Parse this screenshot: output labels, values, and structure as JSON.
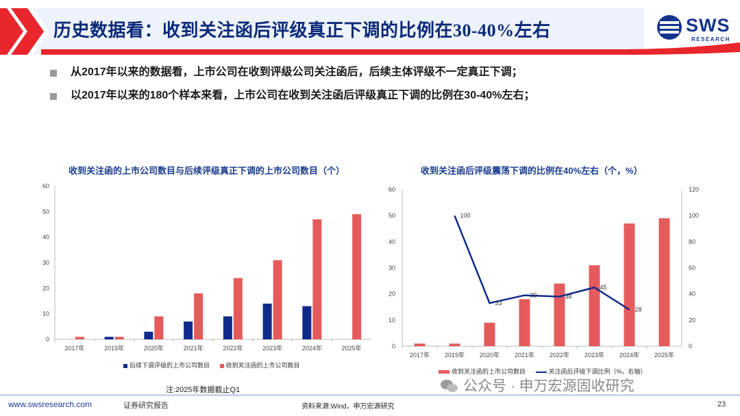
{
  "header": {
    "title": "历史数据看：收到关注函后评级真正下调的比例在30-40%左右",
    "accent_color": "#e8262b",
    "brand_color": "#14348c"
  },
  "logo": {
    "text": "SWS",
    "sub": "RESEARCH"
  },
  "bullets": [
    "从2017年以来的数据看，上市公司在收到评级公司关注函后，后续主体评级不一定真正下调；",
    "以2017年以来的180个样本来看，上市公司在收到关注函后评级真正下调的比例在30-40%左右；"
  ],
  "chart_data": [
    {
      "type": "bar",
      "title": "收到关注函的上市公司数目与后续评级真正下调的上市公司数目（个）",
      "categories": [
        "2017年",
        "2019年",
        "2020年",
        "2021年",
        "2022年",
        "2023年",
        "2024年",
        "2025年"
      ],
      "series": [
        {
          "name": "后续下调评级的上市公司数目",
          "color": "#0f2a8a",
          "values": [
            0,
            1,
            3,
            7,
            9,
            14,
            13,
            0
          ]
        },
        {
          "name": "收到关注函的上市公司数目",
          "color": "#e55b5b",
          "values": [
            1,
            1,
            9,
            18,
            24,
            31,
            47,
            49
          ]
        }
      ],
      "ylim": [
        0,
        60
      ],
      "yticks": [
        "0",
        "10",
        "20",
        "30",
        "40",
        "50",
        "60"
      ],
      "legend": "bottom"
    },
    {
      "type": "bar+line",
      "title": "收到关注函后评级震荡下调的比例在40%左右（个，%）",
      "categories": [
        "2017年",
        "2019年",
        "2020年",
        "2021年",
        "2022年",
        "2023年",
        "2024年",
        "2025年"
      ],
      "bars": {
        "name": "收到关注函的上市公司数目",
        "color": "#e55b5b",
        "values": [
          1,
          1,
          9,
          18,
          24,
          31,
          47,
          49
        ]
      },
      "line": {
        "name": "关注函后评级下调比例（%，右轴）",
        "color": "#0f2a8a",
        "values": [
          null,
          100,
          33,
          39,
          38,
          45,
          28,
          null
        ],
        "labels": [
          "",
          "100",
          "33",
          "39",
          "38",
          "45",
          "28",
          ""
        ]
      },
      "ylim_left": [
        0,
        60
      ],
      "yticks_left": [
        "0",
        "10",
        "20",
        "30",
        "40",
        "50",
        "60"
      ],
      "ylim_right": [
        0,
        120
      ],
      "yticks_right": [
        "0",
        "20",
        "40",
        "60",
        "80",
        "100",
        "120"
      ],
      "legend": "bottom"
    }
  ],
  "note": "注:2025年数据截止Q1",
  "footer": {
    "url": "www.swsresearch.com",
    "doc_type": "证券研究报告",
    "source": "资料来源:Wind，申万宏源研究",
    "page": "23"
  },
  "watermark": "公众号 · 申万宏源固收研究"
}
